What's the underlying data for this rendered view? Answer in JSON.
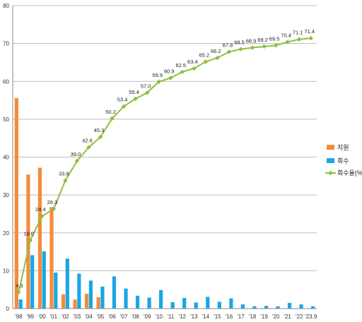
{
  "chart_data": {
    "type": "bar",
    "categories": [
      "'98",
      "'99",
      "'00",
      "'01",
      "'02",
      "'03",
      "'04",
      "'05",
      "'06",
      "'07",
      "'08",
      "'09",
      "'10",
      "'11",
      "'12",
      "'13",
      "'14",
      "'15",
      "'16",
      "'17",
      "'18",
      "'19",
      "'20",
      "'21",
      "'22",
      "'23.9"
    ],
    "series": [
      {
        "name": "지원",
        "type": "bar",
        "color": "#F28C3C",
        "values": [
          55.6,
          35.4,
          37.2,
          26.8,
          3.8,
          2.4,
          3.9,
          3.0,
          0,
          0,
          0,
          0,
          0,
          0,
          0,
          0,
          0,
          0,
          0,
          0,
          0,
          0,
          0,
          0,
          0,
          0
        ]
      },
      {
        "name": "회수",
        "type": "bar",
        "color": "#1AA7E3",
        "values": [
          2.4,
          14.1,
          15.1,
          9.5,
          13.2,
          9.2,
          7.4,
          5.8,
          8.5,
          5.3,
          3.4,
          2.9,
          4.9,
          1.7,
          2.8,
          1.6,
          3.1,
          1.8,
          2.7,
          1.1,
          0.6,
          0.7,
          0.6,
          1.5,
          1.1,
          0.6
        ]
      },
      {
        "name": "회수율(%)",
        "type": "line",
        "color": "#8DBF3F",
        "values": [
          4.3,
          18.0,
          24.4,
          26.3,
          33.8,
          39.0,
          42.6,
          45.3,
          50.2,
          53.4,
          55.4,
          57.0,
          59.9,
          60.9,
          62.5,
          63.4,
          65.2,
          66.2,
          67.8,
          68.5,
          68.9,
          69.2,
          69.5,
          70.4,
          71.1,
          71.4
        ],
        "labels": [
          "4.3",
          "18.0",
          "24.4",
          "26.3",
          "33.8",
          "39.0",
          "42.6",
          "45.3",
          "50.2",
          "53.4",
          "55.4",
          "57.0",
          "59.9",
          "60.9",
          "62.5",
          "63.4",
          "65.2",
          "66.2",
          "67.8",
          "68.5",
          "68.9",
          "69.2",
          "69.5",
          "70.4",
          "71.1",
          "71.4"
        ]
      }
    ],
    "yaxis": {
      "min": 0,
      "max": 80,
      "ticks": [
        "0",
        "10",
        "20",
        "30",
        "40",
        "50",
        "60",
        "70",
        "80"
      ]
    },
    "grid": true,
    "legend_position": "right"
  }
}
